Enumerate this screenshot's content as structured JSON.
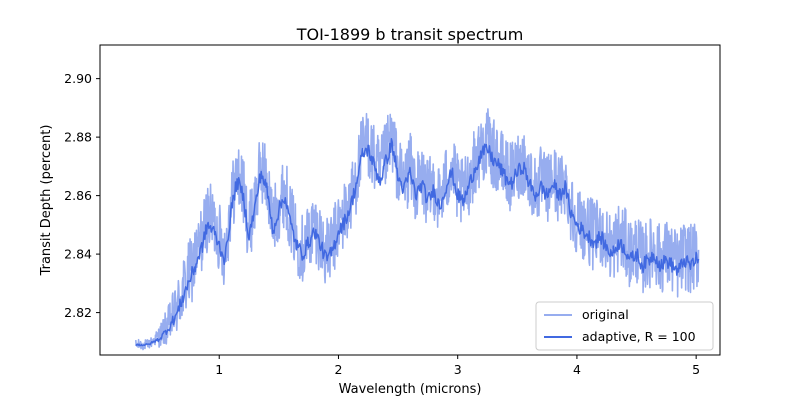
{
  "chart_data": {
    "type": "line",
    "title": "TOI-1899 b transit spectrum",
    "xlabel": "Wavelength (microns)",
    "ylabel": "Transit Depth (percent)",
    "xlim": [
      0.0,
      5.2
    ],
    "ylim": [
      2.8055,
      2.9115
    ],
    "xticks": [
      1,
      2,
      3,
      4,
      5
    ],
    "yticks": [
      2.82,
      2.84,
      2.86,
      2.88,
      2.9
    ],
    "grid": false,
    "legend_position": "lower-right",
    "series": [
      {
        "name": "original",
        "color": "#4169e1",
        "opacity": 0.55,
        "style": "noisy",
        "noise_amplitude": 0.012,
        "x": [
          0.3,
          0.4,
          0.5,
          0.58,
          0.65,
          0.72,
          0.8,
          0.86,
          0.9,
          0.95,
          1.0,
          1.05,
          1.1,
          1.15,
          1.2,
          1.25,
          1.3,
          1.35,
          1.4,
          1.45,
          1.5,
          1.55,
          1.6,
          1.65,
          1.7,
          1.75,
          1.8,
          1.85,
          1.9,
          1.95,
          2.0,
          2.05,
          2.1,
          2.15,
          2.2,
          2.25,
          2.3,
          2.35,
          2.4,
          2.45,
          2.5,
          2.55,
          2.6,
          2.65,
          2.7,
          2.75,
          2.8,
          2.85,
          2.9,
          2.95,
          3.0,
          3.05,
          3.1,
          3.15,
          3.2,
          3.25,
          3.3,
          3.35,
          3.4,
          3.45,
          3.5,
          3.55,
          3.6,
          3.65,
          3.7,
          3.75,
          3.8,
          3.85,
          3.9,
          3.95,
          4.0,
          4.05,
          4.1,
          4.15,
          4.2,
          4.25,
          4.3,
          4.35,
          4.4,
          4.45,
          4.5,
          4.55,
          4.6,
          4.65,
          4.7,
          4.75,
          4.8,
          4.85,
          4.9,
          4.95,
          5.02
        ],
        "values": [
          2.809,
          2.809,
          2.812,
          2.816,
          2.822,
          2.83,
          2.838,
          2.846,
          2.853,
          2.851,
          2.846,
          2.84,
          2.858,
          2.867,
          2.862,
          2.848,
          2.858,
          2.87,
          2.865,
          2.85,
          2.857,
          2.862,
          2.852,
          2.845,
          2.842,
          2.846,
          2.85,
          2.845,
          2.84,
          2.843,
          2.85,
          2.853,
          2.858,
          2.866,
          2.876,
          2.878,
          2.872,
          2.867,
          2.874,
          2.88,
          2.868,
          2.864,
          2.87,
          2.862,
          2.866,
          2.86,
          2.864,
          2.858,
          2.865,
          2.87,
          2.862,
          2.86,
          2.866,
          2.872,
          2.876,
          2.878,
          2.874,
          2.872,
          2.868,
          2.866,
          2.87,
          2.872,
          2.866,
          2.862,
          2.865,
          2.862,
          2.866,
          2.862,
          2.865,
          2.856,
          2.852,
          2.85,
          2.848,
          2.846,
          2.848,
          2.844,
          2.842,
          2.846,
          2.844,
          2.84,
          2.842,
          2.838,
          2.84,
          2.842,
          2.838,
          2.84,
          2.838,
          2.836,
          2.84,
          2.838,
          2.84
        ]
      },
      {
        "name": "adaptive, R = 100",
        "color": "#4169e1",
        "opacity": 1.0,
        "style": "wiggly",
        "noise_amplitude": 0.0025,
        "x": [
          0.3,
          0.4,
          0.5,
          0.58,
          0.65,
          0.72,
          0.8,
          0.86,
          0.9,
          0.95,
          1.0,
          1.05,
          1.1,
          1.15,
          1.2,
          1.25,
          1.3,
          1.35,
          1.4,
          1.45,
          1.5,
          1.55,
          1.6,
          1.65,
          1.7,
          1.75,
          1.8,
          1.85,
          1.9,
          1.95,
          2.0,
          2.05,
          2.1,
          2.15,
          2.2,
          2.25,
          2.3,
          2.35,
          2.4,
          2.45,
          2.5,
          2.55,
          2.6,
          2.65,
          2.7,
          2.75,
          2.8,
          2.85,
          2.9,
          2.95,
          3.0,
          3.05,
          3.1,
          3.15,
          3.2,
          3.25,
          3.3,
          3.35,
          3.4,
          3.45,
          3.5,
          3.55,
          3.6,
          3.65,
          3.7,
          3.75,
          3.8,
          3.85,
          3.9,
          3.95,
          4.0,
          4.05,
          4.1,
          4.15,
          4.2,
          4.25,
          4.3,
          4.35,
          4.4,
          4.45,
          4.5,
          4.55,
          4.6,
          4.65,
          4.7,
          4.75,
          4.8,
          4.85,
          4.9,
          4.95,
          5.02
        ],
        "values": [
          2.809,
          2.809,
          2.811,
          2.815,
          2.82,
          2.828,
          2.836,
          2.843,
          2.85,
          2.848,
          2.843,
          2.838,
          2.855,
          2.865,
          2.86,
          2.846,
          2.856,
          2.868,
          2.862,
          2.848,
          2.855,
          2.86,
          2.85,
          2.843,
          2.84,
          2.844,
          2.848,
          2.843,
          2.838,
          2.841,
          2.848,
          2.851,
          2.856,
          2.864,
          2.874,
          2.876,
          2.87,
          2.865,
          2.872,
          2.878,
          2.866,
          2.862,
          2.868,
          2.86,
          2.864,
          2.858,
          2.862,
          2.856,
          2.863,
          2.868,
          2.86,
          2.858,
          2.864,
          2.87,
          2.874,
          2.876,
          2.872,
          2.87,
          2.866,
          2.864,
          2.868,
          2.87,
          2.864,
          2.86,
          2.863,
          2.86,
          2.864,
          2.86,
          2.863,
          2.854,
          2.85,
          2.848,
          2.846,
          2.844,
          2.846,
          2.842,
          2.84,
          2.844,
          2.842,
          2.838,
          2.84,
          2.836,
          2.838,
          2.84,
          2.836,
          2.838,
          2.836,
          2.834,
          2.838,
          2.836,
          2.839
        ]
      }
    ]
  }
}
